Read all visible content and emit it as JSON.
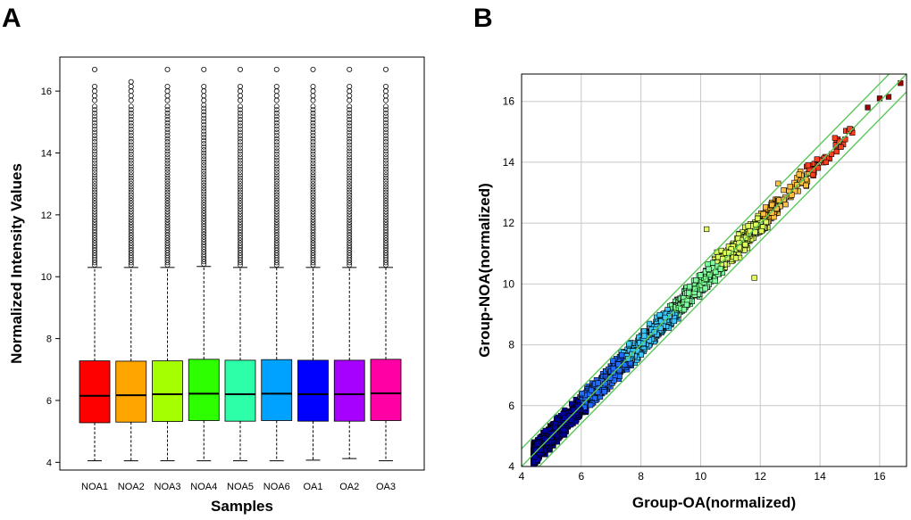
{
  "chart_data": [
    {
      "panel": "A",
      "type": "boxplot",
      "xlabel": "Samples",
      "ylabel": "Normalized Intensity Values",
      "ylim": [
        3.75,
        17.1
      ],
      "yticks": [
        4,
        6,
        8,
        10,
        12,
        14,
        16
      ],
      "categories": [
        "NOA1",
        "NOA2",
        "NOA3",
        "NOA4",
        "NOA5",
        "NOA6",
        "OA1",
        "OA2",
        "OA3"
      ],
      "boxes": [
        {
          "name": "NOA1",
          "min": 4.05,
          "q1": 5.28,
          "median": 6.15,
          "q3": 7.28,
          "upper_whisker": 10.3,
          "max_outlier": 16.7,
          "color": "#ff0000"
        },
        {
          "name": "NOA2",
          "min": 4.05,
          "q1": 5.3,
          "median": 6.17,
          "q3": 7.27,
          "upper_whisker": 10.3,
          "max_outlier": 16.3,
          "color": "#ffa500"
        },
        {
          "name": "NOA3",
          "min": 4.05,
          "q1": 5.32,
          "median": 6.2,
          "q3": 7.28,
          "upper_whisker": 10.3,
          "max_outlier": 16.7,
          "color": "#a6ff00"
        },
        {
          "name": "NOA4",
          "min": 4.05,
          "q1": 5.35,
          "median": 6.22,
          "q3": 7.33,
          "upper_whisker": 10.33,
          "max_outlier": 16.7,
          "color": "#2eff00"
        },
        {
          "name": "NOA5",
          "min": 4.05,
          "q1": 5.33,
          "median": 6.2,
          "q3": 7.3,
          "upper_whisker": 10.3,
          "max_outlier": 16.7,
          "color": "#2dffa8"
        },
        {
          "name": "NOA6",
          "min": 4.05,
          "q1": 5.35,
          "median": 6.22,
          "q3": 7.32,
          "upper_whisker": 10.3,
          "max_outlier": 16.7,
          "color": "#00a2ff"
        },
        {
          "name": "OA1",
          "min": 4.07,
          "q1": 5.33,
          "median": 6.2,
          "q3": 7.3,
          "upper_whisker": 10.3,
          "max_outlier": 16.7,
          "color": "#0000ff"
        },
        {
          "name": "OA2",
          "min": 4.12,
          "q1": 5.33,
          "median": 6.2,
          "q3": 7.3,
          "upper_whisker": 10.3,
          "max_outlier": 16.7,
          "color": "#a600ff"
        },
        {
          "name": "OA3",
          "min": 4.05,
          "q1": 5.35,
          "median": 6.23,
          "q3": 7.33,
          "upper_whisker": 10.3,
          "max_outlier": 16.7,
          "color": "#ff00a5"
        }
      ]
    },
    {
      "panel": "B",
      "type": "scatter",
      "xlabel": "Group-OA(normalized)",
      "ylabel": "Group-NOA(normalized)",
      "xlim": [
        4,
        16.9
      ],
      "ylim": [
        4,
        16.9
      ],
      "xticks": [
        4,
        6,
        8,
        10,
        12,
        14,
        16
      ],
      "yticks": [
        4,
        6,
        8,
        10,
        12,
        14,
        16
      ],
      "grid": true,
      "fold_change_lines": [
        {
          "name": "y = x",
          "offset": 0,
          "color": "#5ac85a"
        },
        {
          "name": "upper 1.5-fold",
          "offset": 0.585,
          "color": "#5ac85a"
        },
        {
          "name": "lower 1.5-fold",
          "offset": -0.585,
          "color": "#5ac85a"
        }
      ],
      "colormap": "jet by intensity",
      "marker_colors": [
        "#0000a0",
        "#1f6cff",
        "#3cc8ff",
        "#80ffa0",
        "#dfff60",
        "#ffc040",
        "#ff4020",
        "#a00000"
      ],
      "density_clusters": [
        {
          "x_range": [
            4.4,
            9.5
          ],
          "spread": 0.28,
          "note": "dense core along diagonal"
        },
        {
          "x_range": [
            9.5,
            12.5
          ],
          "spread": 0.3,
          "note": "moderate density"
        },
        {
          "x_range": [
            12.5,
            16.8
          ],
          "spread": 0.25,
          "note": "sparse high-intensity points"
        }
      ],
      "highlight_points": [
        {
          "x": 16.7,
          "y": 16.6
        },
        {
          "x": 16.3,
          "y": 16.15
        },
        {
          "x": 16.0,
          "y": 16.1
        },
        {
          "x": 15.6,
          "y": 15.8
        },
        {
          "x": 15.0,
          "y": 15.1
        },
        {
          "x": 14.7,
          "y": 14.5
        },
        {
          "x": 14.5,
          "y": 14.8
        },
        {
          "x": 14.2,
          "y": 14.0
        },
        {
          "x": 13.9,
          "y": 14.1
        },
        {
          "x": 13.6,
          "y": 13.9
        },
        {
          "x": 13.3,
          "y": 13.6
        },
        {
          "x": 13.0,
          "y": 13.2
        },
        {
          "x": 12.6,
          "y": 13.3
        },
        {
          "x": 12.1,
          "y": 12.3
        },
        {
          "x": 11.8,
          "y": 10.2
        },
        {
          "x": 10.2,
          "y": 11.8
        },
        {
          "x": 9.6,
          "y": 9.7
        }
      ]
    }
  ],
  "labels": {
    "panel_a": "A",
    "panel_b": "B"
  },
  "colors": {
    "grid": "#c8c8c8",
    "axis": "#000000",
    "whisker": "#000000"
  }
}
